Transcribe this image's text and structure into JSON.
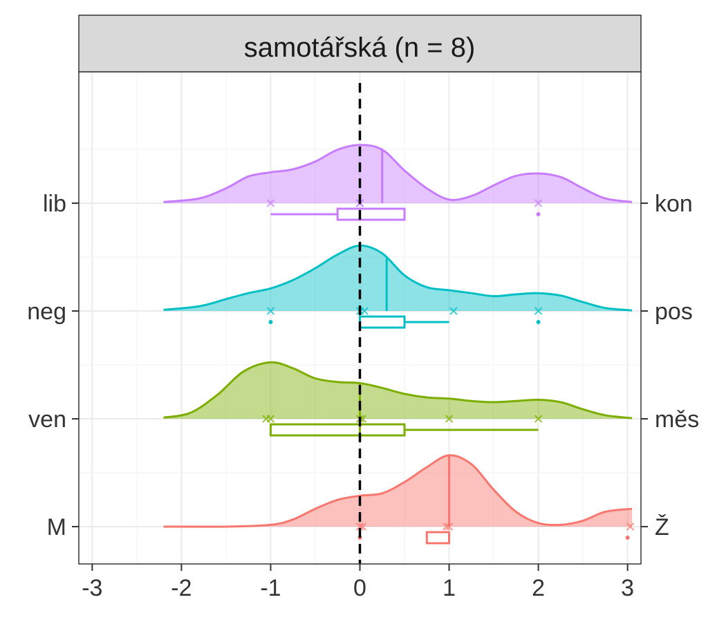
{
  "chart_data": {
    "type": "ridgeline",
    "title": "samotářská (n = 8)",
    "x_ticks": [
      -3,
      -2,
      -1,
      0,
      1,
      2,
      3
    ],
    "x_tick_labels": [
      "-3",
      "-2",
      "-1",
      "0",
      "1",
      "2",
      "3"
    ],
    "xlim": [
      -3.15,
      3.15
    ],
    "reference_line_x": 0,
    "grid": true,
    "rows": [
      {
        "left_label": "lib",
        "right_label": "kon",
        "color": "#C77CFF",
        "median": 0.25,
        "density": [
          [
            -2.2,
            0.02
          ],
          [
            -1.8,
            0.08
          ],
          [
            -1.5,
            0.25
          ],
          [
            -1.25,
            0.45
          ],
          [
            -1.0,
            0.52
          ],
          [
            -0.75,
            0.57
          ],
          [
            -0.5,
            0.7
          ],
          [
            -0.25,
            0.9
          ],
          [
            0.0,
            0.98
          ],
          [
            0.25,
            0.9
          ],
          [
            0.5,
            0.55
          ],
          [
            0.75,
            0.25
          ],
          [
            1.0,
            0.06
          ],
          [
            1.25,
            0.12
          ],
          [
            1.5,
            0.3
          ],
          [
            1.75,
            0.46
          ],
          [
            2.0,
            0.5
          ],
          [
            2.25,
            0.44
          ],
          [
            2.5,
            0.25
          ],
          [
            2.75,
            0.08
          ],
          [
            3.05,
            0.02
          ]
        ],
        "points": [
          -1,
          0,
          0,
          2
        ],
        "jitter": [
          {
            "x": 2,
            "y": 2
          }
        ],
        "box": {
          "whisker_low": -1,
          "q1": -0.25,
          "median": 0,
          "q3": 0.5,
          "whisker_high": 0.5
        }
      },
      {
        "left_label": "neg",
        "right_label": "pos",
        "color": "#00BFC4",
        "median": 0.3,
        "density": [
          [
            -2.2,
            0.02
          ],
          [
            -1.8,
            0.08
          ],
          [
            -1.5,
            0.2
          ],
          [
            -1.25,
            0.3
          ],
          [
            -1.0,
            0.38
          ],
          [
            -0.75,
            0.52
          ],
          [
            -0.5,
            0.72
          ],
          [
            -0.25,
            0.95
          ],
          [
            0.0,
            1.1
          ],
          [
            0.25,
            0.97
          ],
          [
            0.5,
            0.6
          ],
          [
            0.75,
            0.4
          ],
          [
            1.0,
            0.35
          ],
          [
            1.25,
            0.3
          ],
          [
            1.5,
            0.25
          ],
          [
            1.75,
            0.28
          ],
          [
            2.0,
            0.3
          ],
          [
            2.25,
            0.26
          ],
          [
            2.5,
            0.15
          ],
          [
            2.75,
            0.05
          ],
          [
            3.05,
            0.01
          ]
        ],
        "points": [
          -1,
          0,
          0.05,
          1.05,
          2
        ],
        "jitter": [
          {
            "x": -1,
            "y": 2
          },
          {
            "x": 2,
            "y": 2
          }
        ],
        "box": {
          "whisker_low": 0,
          "q1": 0,
          "median": 0,
          "q3": 0.5,
          "whisker_high": 1
        }
      },
      {
        "left_label": "ven",
        "right_label": "měs",
        "color": "#7CAE00",
        "median": 0,
        "density": [
          [
            -2.2,
            0.02
          ],
          [
            -1.9,
            0.1
          ],
          [
            -1.6,
            0.4
          ],
          [
            -1.3,
            0.8
          ],
          [
            -1.0,
            0.95
          ],
          [
            -0.75,
            0.85
          ],
          [
            -0.5,
            0.68
          ],
          [
            -0.25,
            0.62
          ],
          [
            0.0,
            0.6
          ],
          [
            0.25,
            0.52
          ],
          [
            0.5,
            0.42
          ],
          [
            0.75,
            0.36
          ],
          [
            1.0,
            0.34
          ],
          [
            1.25,
            0.3
          ],
          [
            1.5,
            0.28
          ],
          [
            1.75,
            0.3
          ],
          [
            2.0,
            0.32
          ],
          [
            2.25,
            0.28
          ],
          [
            2.5,
            0.16
          ],
          [
            2.75,
            0.06
          ],
          [
            3.05,
            0.01
          ]
        ],
        "points": [
          -1.05,
          -1,
          0,
          0.03,
          1,
          2
        ],
        "jitter": [],
        "box": {
          "whisker_low": -1,
          "q1": -1,
          "median": 0,
          "q3": 0.5,
          "whisker_high": 2
        }
      },
      {
        "left_label": "M",
        "right_label": "Ž",
        "color": "#F8766D",
        "median": 1,
        "density": [
          [
            -2.2,
            0.0
          ],
          [
            -1.5,
            0.0
          ],
          [
            -1.0,
            0.03
          ],
          [
            -0.75,
            0.12
          ],
          [
            -0.5,
            0.3
          ],
          [
            -0.25,
            0.45
          ],
          [
            0.0,
            0.52
          ],
          [
            0.25,
            0.56
          ],
          [
            0.5,
            0.75
          ],
          [
            0.75,
            1.0
          ],
          [
            1.0,
            1.2
          ],
          [
            1.25,
            1.05
          ],
          [
            1.5,
            0.62
          ],
          [
            1.75,
            0.25
          ],
          [
            2.0,
            0.06
          ],
          [
            2.25,
            0.03
          ],
          [
            2.5,
            0.1
          ],
          [
            2.75,
            0.25
          ],
          [
            3.05,
            0.3
          ]
        ],
        "points": [
          0,
          0.03,
          0.97,
          1,
          3.03
        ],
        "jitter": [
          {
            "x": 0,
            "y": 2
          },
          {
            "x": 3,
            "y": 2
          }
        ],
        "box": {
          "whisker_low": 0.75,
          "q1": 0.75,
          "median": 1,
          "q3": 1,
          "whisker_high": 1
        }
      }
    ]
  }
}
